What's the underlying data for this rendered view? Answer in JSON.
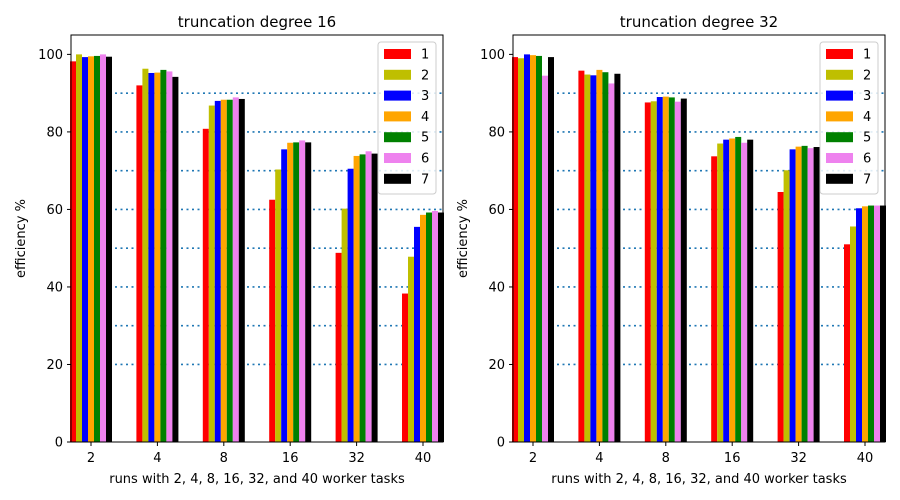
{
  "chart_data": [
    {
      "type": "bar",
      "title": "truncation degree 16",
      "xlabel": "runs with 2, 4, 8, 16, 32, and 40 worker tasks",
      "ylabel": "efficiency %",
      "ylim": [
        0,
        105
      ],
      "yticks": [
        0,
        20,
        40,
        60,
        80,
        100
      ],
      "hlines": [
        20,
        30,
        40,
        50,
        60,
        70,
        80,
        90
      ],
      "hline_color": "#1f77b4",
      "legend_position": "top-right",
      "categories": [
        "2",
        "4",
        "8",
        "16",
        "32",
        "40"
      ],
      "series": [
        {
          "name": "1",
          "color": "#ff0000",
          "values": [
            98.2,
            92.0,
            80.8,
            62.5,
            48.8,
            38.3
          ]
        },
        {
          "name": "2",
          "color": "#bfbf00",
          "values": [
            100.0,
            96.3,
            86.8,
            70.3,
            60.2,
            47.8
          ]
        },
        {
          "name": "3",
          "color": "#0000ff",
          "values": [
            99.3,
            95.2,
            88.0,
            75.5,
            70.5,
            55.5
          ]
        },
        {
          "name": "4",
          "color": "#ffa500",
          "values": [
            99.5,
            95.3,
            88.3,
            77.2,
            73.8,
            58.6
          ]
        },
        {
          "name": "5",
          "color": "#008000",
          "values": [
            99.6,
            96.0,
            88.3,
            77.3,
            74.2,
            59.2
          ]
        },
        {
          "name": "6",
          "color": "#ee82ee",
          "values": [
            100.0,
            95.6,
            88.9,
            77.8,
            75.0,
            59.6
          ]
        },
        {
          "name": "7",
          "color": "#000000",
          "values": [
            99.4,
            94.2,
            88.5,
            77.3,
            74.4,
            59.2
          ]
        }
      ]
    },
    {
      "type": "bar",
      "title": "truncation degree 32",
      "xlabel": "runs with 2, 4, 8, 16, 32, and 40 worker tasks",
      "ylabel": "efficiency %",
      "ylim": [
        0,
        105
      ],
      "yticks": [
        0,
        20,
        40,
        60,
        80,
        100
      ],
      "hlines": [
        20,
        30,
        40,
        50,
        60,
        70,
        80,
        90
      ],
      "hline_color": "#1f77b4",
      "legend_position": "top-right",
      "categories": [
        "2",
        "4",
        "8",
        "16",
        "32",
        "40"
      ],
      "series": [
        {
          "name": "1",
          "color": "#ff0000",
          "values": [
            99.3,
            95.8,
            87.6,
            73.7,
            64.5,
            51.0
          ]
        },
        {
          "name": "2",
          "color": "#bfbf00",
          "values": [
            99.0,
            94.8,
            87.9,
            77.0,
            70.1,
            55.6
          ]
        },
        {
          "name": "3",
          "color": "#0000ff",
          "values": [
            100.0,
            94.6,
            89.0,
            78.0,
            75.5,
            60.3
          ]
        },
        {
          "name": "4",
          "color": "#ffa500",
          "values": [
            99.8,
            96.0,
            89.1,
            78.3,
            76.2,
            60.8
          ]
        },
        {
          "name": "5",
          "color": "#008000",
          "values": [
            99.6,
            95.4,
            88.9,
            78.7,
            76.4,
            61.0
          ]
        },
        {
          "name": "6",
          "color": "#ee82ee",
          "values": [
            94.5,
            92.5,
            87.8,
            77.2,
            75.8,
            61.0
          ]
        },
        {
          "name": "7",
          "color": "#000000",
          "values": [
            99.3,
            95.0,
            88.6,
            78.0,
            76.1,
            61.0
          ]
        }
      ]
    }
  ]
}
